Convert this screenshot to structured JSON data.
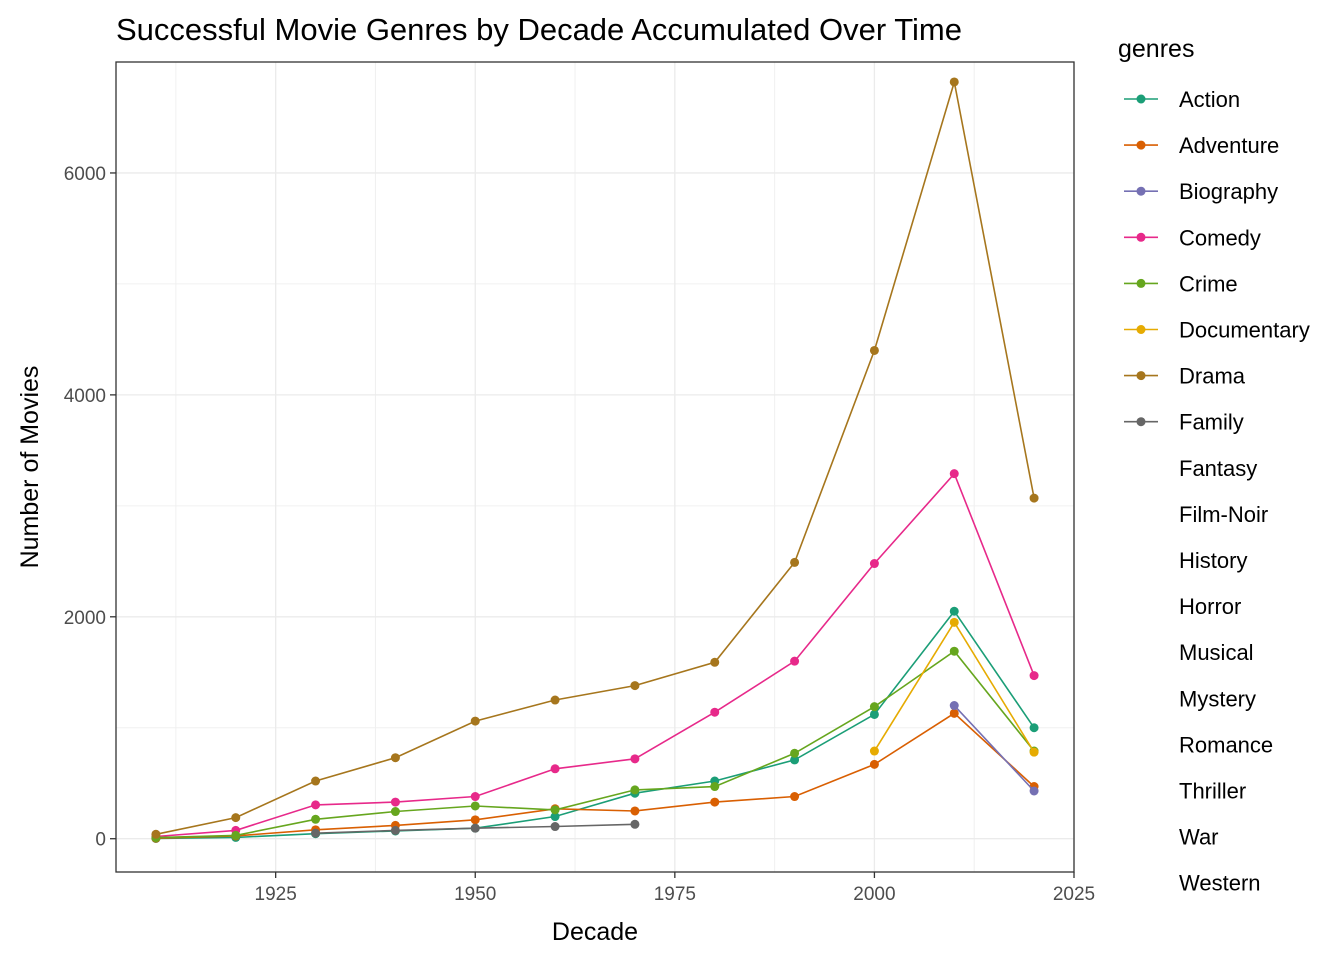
{
  "chart_data": {
    "type": "line",
    "title": "Successful Movie Genres by Decade Accumulated Over Time",
    "xlabel": "Decade",
    "ylabel": "Number of Movies",
    "xlim": [
      1905,
      2025
    ],
    "ylim": [
      -300,
      7000
    ],
    "x_ticks": [
      1925,
      1950,
      1975,
      2000,
      2025
    ],
    "y_ticks": [
      0,
      2000,
      4000,
      6000
    ],
    "grid": true,
    "legend": {
      "title": "genres",
      "position": "right"
    },
    "series": [
      {
        "name": "Action",
        "color": "#1B9E77",
        "points": [
          [
            1910,
            2
          ],
          [
            1920,
            12
          ],
          [
            1930,
            45
          ],
          [
            1940,
            70
          ],
          [
            1950,
            95
          ],
          [
            1960,
            200
          ],
          [
            1970,
            410
          ],
          [
            1980,
            520
          ],
          [
            1990,
            710
          ],
          [
            2000,
            1120
          ],
          [
            2010,
            2050
          ],
          [
            2020,
            1000
          ]
        ]
      },
      {
        "name": "Adventure",
        "color": "#D95F02",
        "points": [
          [
            1910,
            5
          ],
          [
            1920,
            25
          ],
          [
            1930,
            80
          ],
          [
            1940,
            120
          ],
          [
            1950,
            170
          ],
          [
            1960,
            270
          ],
          [
            1970,
            250
          ],
          [
            1980,
            330
          ],
          [
            1990,
            380
          ],
          [
            2000,
            670
          ],
          [
            2010,
            1130
          ],
          [
            2020,
            470
          ]
        ]
      },
      {
        "name": "Biography",
        "color": "#7570B3",
        "points": [
          [
            2010,
            1200
          ],
          [
            2020,
            430
          ]
        ]
      },
      {
        "name": "Comedy",
        "color": "#E7298A",
        "points": [
          [
            1910,
            20
          ],
          [
            1920,
            75
          ],
          [
            1930,
            305
          ],
          [
            1940,
            330
          ],
          [
            1950,
            380
          ],
          [
            1960,
            630
          ],
          [
            1970,
            720
          ],
          [
            1980,
            1140
          ],
          [
            1990,
            1600
          ],
          [
            2000,
            2480
          ],
          [
            2010,
            3290
          ],
          [
            2020,
            1470
          ]
        ]
      },
      {
        "name": "Crime",
        "color": "#66A61E",
        "points": [
          [
            1910,
            10
          ],
          [
            1920,
            30
          ],
          [
            1930,
            175
          ],
          [
            1940,
            245
          ],
          [
            1950,
            295
          ],
          [
            1960,
            260
          ],
          [
            1970,
            440
          ],
          [
            1980,
            470
          ],
          [
            1990,
            770
          ],
          [
            2000,
            1190
          ],
          [
            2010,
            1690
          ],
          [
            2020,
            790
          ]
        ]
      },
      {
        "name": "Documentary",
        "color": "#E6AB02",
        "points": [
          [
            2000,
            790
          ],
          [
            2010,
            1950
          ],
          [
            2020,
            780
          ]
        ]
      },
      {
        "name": "Drama",
        "color": "#A6761D",
        "points": [
          [
            1910,
            40
          ],
          [
            1920,
            190
          ],
          [
            1930,
            520
          ],
          [
            1940,
            730
          ],
          [
            1950,
            1060
          ],
          [
            1960,
            1250
          ],
          [
            1970,
            1380
          ],
          [
            1980,
            1590
          ],
          [
            1990,
            2490
          ],
          [
            2000,
            4400
          ],
          [
            2010,
            6820
          ],
          [
            2020,
            3070
          ]
        ]
      },
      {
        "name": "Family",
        "color": "#666666",
        "points": [
          [
            1930,
            50
          ],
          [
            1940,
            75
          ],
          [
            1950,
            95
          ],
          [
            1960,
            110
          ],
          [
            1970,
            130
          ]
        ]
      },
      {
        "name": "Fantasy",
        "points": []
      },
      {
        "name": "Film-Noir",
        "points": []
      },
      {
        "name": "History",
        "points": []
      },
      {
        "name": "Horror",
        "points": []
      },
      {
        "name": "Musical",
        "points": []
      },
      {
        "name": "Mystery",
        "points": []
      },
      {
        "name": "Romance",
        "points": []
      },
      {
        "name": "Thriller",
        "points": []
      },
      {
        "name": "War",
        "points": []
      },
      {
        "name": "Western",
        "points": []
      }
    ]
  }
}
